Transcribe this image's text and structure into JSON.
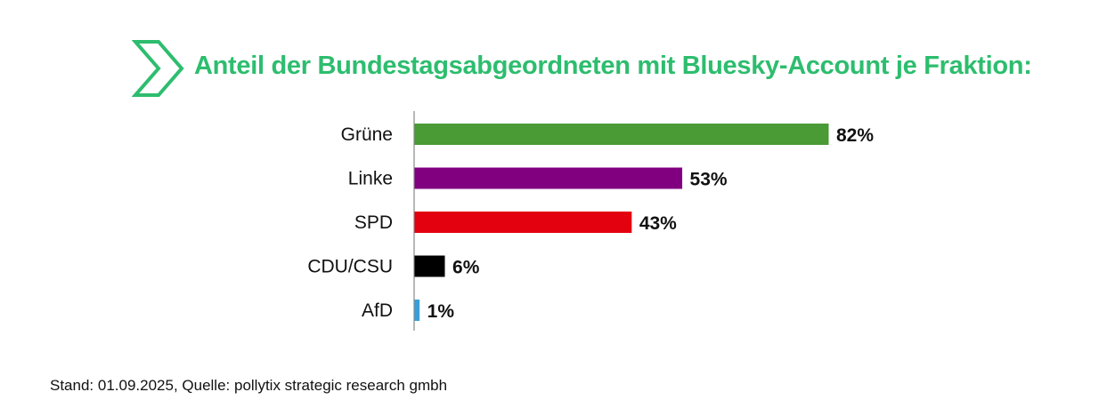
{
  "title": "Anteil der Bundestagsabgeordneten mit Bluesky-Account je Fraktion:",
  "title_color": "#2dbd6e",
  "icon": "chevron-right-outline-icon",
  "footer": "Stand: 01.09.2025, Quelle: pollytix strategic research gmbh",
  "chart_data": {
    "type": "bar",
    "orientation": "horizontal",
    "title": "Anteil der Bundestagsabgeordneten mit Bluesky-Account je Fraktion:",
    "categories": [
      "Grüne",
      "Linke",
      "SPD",
      "CDU/CSU",
      "AfD"
    ],
    "values": [
      82,
      53,
      43,
      6,
      1
    ],
    "labels": [
      "82%",
      "53%",
      "43%",
      "6%",
      "1%"
    ],
    "colors": [
      "#4a9a35",
      "#800080",
      "#e3000f",
      "#000000",
      "#3a9fd6"
    ],
    "unit": "%",
    "xlim": [
      0,
      100
    ],
    "grid": false,
    "legend": "none"
  }
}
